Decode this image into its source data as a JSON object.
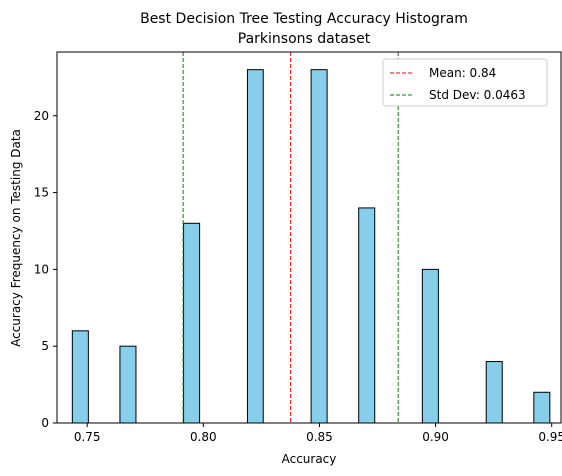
{
  "chart_data": {
    "type": "bar",
    "title": "Best Decision Tree Testing Accuracy Histogram",
    "subtitle": "Parkinsons dataset",
    "xlabel": "Accuracy",
    "ylabel": "Accuracy Frequency on Testing Data",
    "xlim": [
      0.737,
      0.954
    ],
    "ylim": [
      0,
      24.15
    ],
    "x_ticks": [
      "0.75",
      "0.80",
      "0.85",
      "0.90",
      "0.95"
    ],
    "y_ticks": [
      "0",
      "5",
      "10",
      "15",
      "20"
    ],
    "grid": false,
    "legend_position": "top-right",
    "bins": [
      {
        "left": 0.7436,
        "right": 0.7505,
        "count": 6
      },
      {
        "left": 0.7641,
        "right": 0.771,
        "count": 5
      },
      {
        "left": 0.7915,
        "right": 0.7984,
        "count": 13
      },
      {
        "left": 0.819,
        "right": 0.8258,
        "count": 23
      },
      {
        "left": 0.8464,
        "right": 0.8533,
        "count": 23
      },
      {
        "left": 0.8669,
        "right": 0.8738,
        "count": 14
      },
      {
        "left": 0.8943,
        "right": 0.9012,
        "count": 10
      },
      {
        "left": 0.9218,
        "right": 0.9287,
        "count": 4
      },
      {
        "left": 0.9423,
        "right": 0.9492,
        "count": 2
      }
    ],
    "bar_color": "#87CEEB",
    "bar_edge_color": "#000000",
    "mean_line": {
      "label": "Mean: 0.84",
      "x": 0.8376,
      "color": "#FF0000"
    },
    "std_lines": {
      "label": "Std Dev: 0.0463",
      "x": [
        0.7913,
        0.8839
      ],
      "color": "#008000"
    }
  }
}
